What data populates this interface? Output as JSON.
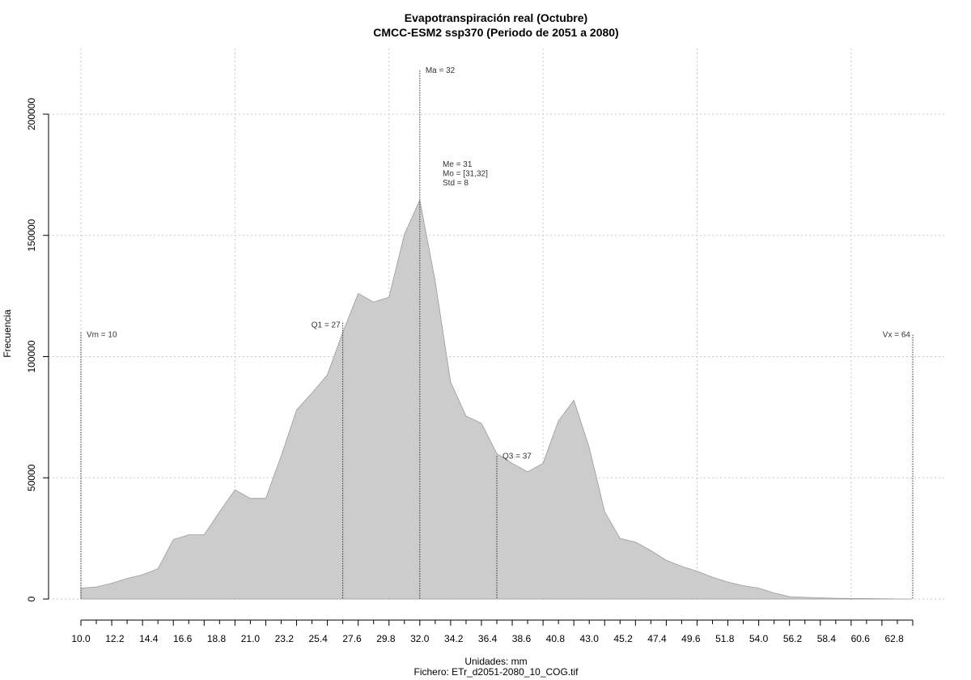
{
  "chart_data": {
    "type": "area",
    "title": "Evapotranspiración real (Octubre)",
    "subtitle": "CMCC-ESM2 ssp370 (Periodo de 2051 a 2080)",
    "xlabel": "Unidades: mm",
    "ylabel": "Frecuencia",
    "footer": "Fichero: ETr_d2051-2080_10_COG.tif",
    "xlim": [
      10,
      64
    ],
    "ylim": [
      0,
      200000
    ],
    "grid": true,
    "fill_color": "#cccccc",
    "stroke_color": "#9a9a9a",
    "x_tick_labels": [
      "10.0",
      "12.2",
      "14.4",
      "16.6",
      "18.8",
      "21.0",
      "23.2",
      "25.4",
      "27.6",
      "29.8",
      "32.0",
      "34.2",
      "36.4",
      "38.6",
      "40.8",
      "43.0",
      "45.2",
      "47.4",
      "49.6",
      "51.8",
      "54.0",
      "56.2",
      "58.4",
      "60.6",
      "62.8"
    ],
    "y_tick_labels": [
      "0",
      "50000",
      "100000",
      "150000",
      "200000"
    ],
    "y_tick_values": [
      0,
      50000,
      100000,
      150000,
      200000
    ],
    "x": [
      10,
      11,
      12,
      13,
      14,
      15,
      16,
      17,
      18,
      19,
      20,
      21,
      22,
      23,
      24,
      25,
      26,
      27,
      28,
      29,
      30,
      31,
      32,
      33,
      34,
      35,
      36,
      37,
      38,
      39,
      40,
      41,
      42,
      43,
      44,
      45,
      46,
      47,
      48,
      49,
      50,
      51,
      52,
      53,
      54,
      55,
      56,
      57,
      58,
      59,
      60,
      61,
      62,
      63,
      64
    ],
    "values": [
      4500,
      5000,
      6500,
      8500,
      10000,
      12500,
      24500,
      26500,
      26500,
      36000,
      45000,
      41500,
      41500,
      59000,
      78000,
      85000,
      92500,
      110000,
      126000,
      122500,
      124500,
      150500,
      164500,
      131000,
      89500,
      75500,
      72500,
      60000,
      56000,
      52500,
      56000,
      73500,
      82000,
      62500,
      36000,
      25000,
      23500,
      20000,
      16000,
      13500,
      11500,
      9000,
      7000,
      5500,
      4500,
      2500,
      1000,
      700,
      500,
      300,
      250,
      200,
      100,
      50,
      0
    ],
    "annotations": [
      {
        "label": "Vm = 10",
        "x": 10,
        "line_y": 110000,
        "text_y": 109000,
        "anchor": "start"
      },
      {
        "label": "Q1 = 27",
        "x": 27,
        "line_y": 114000,
        "text_y": 113000,
        "anchor": "end"
      },
      {
        "label": "Ma = 32",
        "x": 32,
        "line_y": 218000,
        "text_y": 218000,
        "anchor": "start"
      },
      {
        "label": "Q3 = 37",
        "x": 37,
        "line_y": 59000,
        "text_y": 59000,
        "anchor": "start"
      },
      {
        "label": "Vx = 64",
        "x": 64,
        "line_y": 109000,
        "text_y": 109000,
        "anchor": "end"
      }
    ],
    "stats_lines": [
      "Me = 31",
      "Mo = [31,32]",
      "Std = 8"
    ]
  }
}
